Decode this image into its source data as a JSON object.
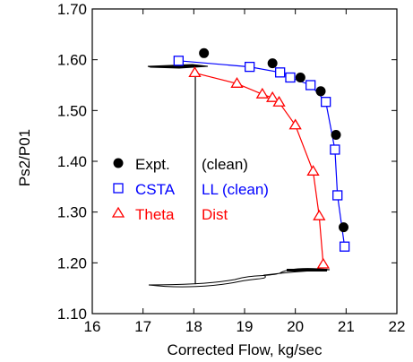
{
  "chart_data": {
    "type": "line",
    "xlabel": "Corrected Flow, kg/sec",
    "ylabel": "Ps2/P01",
    "xlim": [
      16,
      22
    ],
    "ylim": [
      1.1,
      1.7
    ],
    "x_ticks": [
      "16",
      "17",
      "18",
      "19",
      "20",
      "21",
      "22"
    ],
    "y_ticks": [
      "1.10",
      "1.20",
      "1.30",
      "1.40",
      "1.50",
      "1.60",
      "1.70"
    ],
    "grid": false,
    "legend_position": "left-middle",
    "series": [
      {
        "name": "Expt.",
        "name_suffix": "(clean)",
        "color": "#000000",
        "marker": "filled-circle",
        "line": false,
        "x": [
          18.2,
          19.55,
          20.1,
          20.5,
          20.8,
          20.95
        ],
        "y": [
          1.613,
          1.593,
          1.565,
          1.538,
          1.452,
          1.27
        ]
      },
      {
        "name": "CSTA",
        "name_suffix": "LL (clean)",
        "color": "#0000ff",
        "marker": "open-square",
        "line": true,
        "x": [
          17.7,
          19.1,
          19.7,
          19.9,
          20.3,
          20.6,
          20.78,
          20.83,
          20.97
        ],
        "y": [
          1.598,
          1.586,
          1.575,
          1.565,
          1.55,
          1.517,
          1.423,
          1.333,
          1.232
        ]
      },
      {
        "name": "Theta",
        "name_suffix": "Dist",
        "color": "#ff0000",
        "marker": "open-triangle",
        "line": true,
        "x": [
          18.02,
          18.85,
          19.35,
          19.55,
          19.68,
          20.0,
          20.35,
          20.47,
          20.55
        ],
        "y": [
          1.574,
          1.553,
          1.532,
          1.525,
          1.516,
          1.471,
          1.38,
          1.292,
          1.197
        ]
      },
      {
        "name": "",
        "color": "#000000",
        "marker": "none",
        "line": true,
        "x": [
          18.03,
          18.03
        ],
        "y": [
          1.582,
          1.158
        ]
      }
    ]
  }
}
